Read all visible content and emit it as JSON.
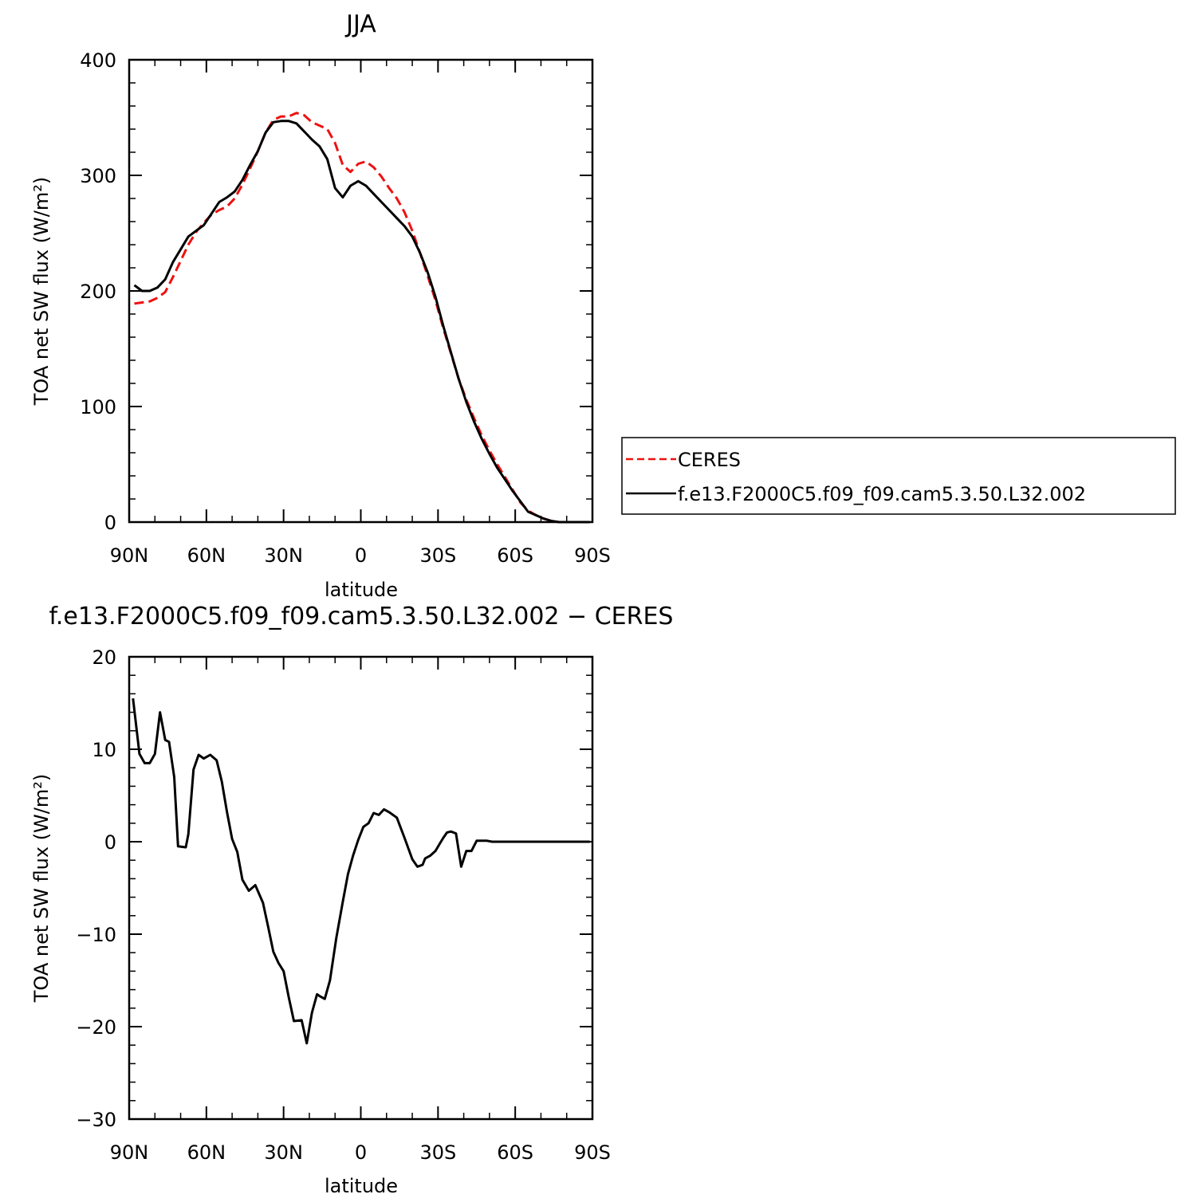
{
  "chart_data": [
    {
      "type": "line",
      "title": "JJA",
      "xlabel": "latitude",
      "ylabel": "TOA net SW flux (W/m²)",
      "xlim": [
        90,
        -90
      ],
      "ylim": [
        0,
        400
      ],
      "x_ticks": [
        90,
        60,
        30,
        0,
        -30,
        -60,
        -90
      ],
      "x_tick_labels": [
        "90N",
        "60N",
        "30N",
        "0",
        "30S",
        "60S",
        "90S"
      ],
      "y_ticks": [
        0,
        100,
        200,
        300,
        400
      ],
      "y_tick_labels": [
        "0",
        "100",
        "200",
        "300",
        "400"
      ],
      "legend_position": "right",
      "x": [
        88,
        85,
        82,
        79,
        76,
        73,
        70,
        67,
        64,
        61,
        58,
        55,
        52,
        49,
        46,
        43,
        40,
        37,
        34,
        31,
        28,
        25,
        22,
        19,
        16,
        13,
        10,
        7,
        4,
        1,
        -2,
        -5,
        -8,
        -11,
        -14,
        -17,
        -20,
        -23,
        -26,
        -29,
        -32,
        -35,
        -38,
        -41,
        -44,
        -47,
        -50,
        -53,
        -56,
        -59,
        -62,
        -65,
        -68,
        -71,
        -74,
        -77,
        -80,
        -83,
        -86,
        -89
      ],
      "series": [
        {
          "name": "CERES",
          "color": "#ee1111",
          "dash": "dashed",
          "values": [
            189,
            190,
            191,
            194,
            199,
            212,
            226,
            240,
            251,
            259,
            266,
            270,
            273,
            280,
            292,
            306,
            321,
            337,
            348,
            351,
            351,
            354,
            352,
            346,
            343,
            340,
            328,
            309,
            303,
            310,
            312,
            307,
            299,
            289,
            280,
            268,
            252,
            233,
            213,
            192,
            168,
            146,
            124,
            106,
            90,
            75,
            62,
            50,
            39,
            28,
            17,
            10,
            6,
            3,
            1,
            0,
            0,
            0,
            0,
            0
          ]
        },
        {
          "name": "f.e13.F2000C5.f09_f09.cam5.3.50.L32.002",
          "color": "#000000",
          "dash": "solid",
          "values": [
            205,
            200,
            200,
            203,
            210,
            225,
            236,
            247,
            252,
            257,
            267,
            277,
            281,
            286,
            296,
            309,
            321,
            337,
            346,
            347,
            347,
            345,
            338,
            331,
            325,
            314,
            289,
            281,
            291,
            295,
            291,
            284,
            277,
            270,
            263,
            256,
            247,
            233,
            216,
            195,
            170,
            147,
            124,
            104,
            87,
            72,
            59,
            47,
            37,
            27,
            18,
            9,
            6,
            3,
            1,
            0,
            0,
            0,
            0,
            0
          ]
        }
      ]
    },
    {
      "type": "line",
      "title": "f.e13.F2000C5.f09_f09.cam5.3.50.L32.002 − CERES",
      "xlabel": "latitude",
      "ylabel": "TOA net SW flux (W/m²)",
      "xlim": [
        90,
        -90
      ],
      "ylim": [
        -30,
        20
      ],
      "x_ticks": [
        90,
        60,
        30,
        0,
        -30,
        -60,
        -90
      ],
      "x_tick_labels": [
        "90N",
        "60N",
        "30N",
        "0",
        "30S",
        "60S",
        "90S"
      ],
      "y_ticks": [
        -30,
        -20,
        -10,
        0,
        10,
        20
      ],
      "y_tick_labels": [
        "−30",
        "−20",
        "−10",
        "0",
        "10",
        "20"
      ],
      "x": [
        88.5,
        86,
        84,
        82,
        80,
        78,
        76,
        74.5,
        72.5,
        71,
        68,
        67,
        65,
        63,
        61,
        58.5,
        56,
        54,
        52,
        50,
        48,
        46,
        43.5,
        41,
        38,
        36,
        34,
        32,
        30,
        28,
        26,
        23,
        21,
        19,
        17,
        16,
        14,
        12,
        9.5,
        7,
        5,
        3,
        1,
        -1,
        -3,
        -5,
        -7,
        -9,
        -11,
        -14,
        -17,
        -20,
        -22,
        -24,
        -25,
        -27,
        -29,
        -30.5,
        -32,
        -33.5,
        -35,
        -37,
        -39,
        -41,
        -43,
        -45,
        -47,
        -49,
        -51,
        -53,
        -55,
        -57,
        -59,
        -61,
        -63,
        -65,
        -67,
        -69,
        -71,
        -73,
        -75,
        -78,
        -81,
        -84,
        -87,
        -89
      ],
      "series": [
        {
          "name": "",
          "color": "#000000",
          "dash": "solid",
          "values": [
            15.5,
            9.5,
            8.5,
            8.5,
            9.5,
            14.0,
            11.0,
            10.8,
            7.0,
            -0.5,
            -0.6,
            0.8,
            7.8,
            9.4,
            9.0,
            9.4,
            8.8,
            6.5,
            3.2,
            0.3,
            -1.1,
            -4.1,
            -5.3,
            -4.7,
            -6.6,
            -9.2,
            -11.9,
            -13.1,
            -14.0,
            -16.8,
            -19.4,
            -19.3,
            -21.8,
            -18.5,
            -16.5,
            -16.7,
            -17.0,
            -15.0,
            -10.4,
            -6.5,
            -3.5,
            -1.5,
            0.2,
            1.6,
            2.0,
            3.1,
            2.9,
            3.5,
            3.2,
            2.6,
            0.4,
            -1.9,
            -2.7,
            -2.5,
            -1.8,
            -1.5,
            -1.0,
            -0.3,
            0.4,
            1.0,
            1.1,
            0.9,
            -2.7,
            -1.0,
            -1.0,
            0.1,
            0.1,
            0.1,
            0.0,
            0.0,
            0.0,
            0.0,
            0.0,
            0.0,
            0.0,
            0.0,
            0.0,
            0.0,
            0.0,
            0.0,
            0.0,
            0.0,
            0.0,
            0.0,
            0.0,
            0.0
          ]
        }
      ]
    }
  ]
}
